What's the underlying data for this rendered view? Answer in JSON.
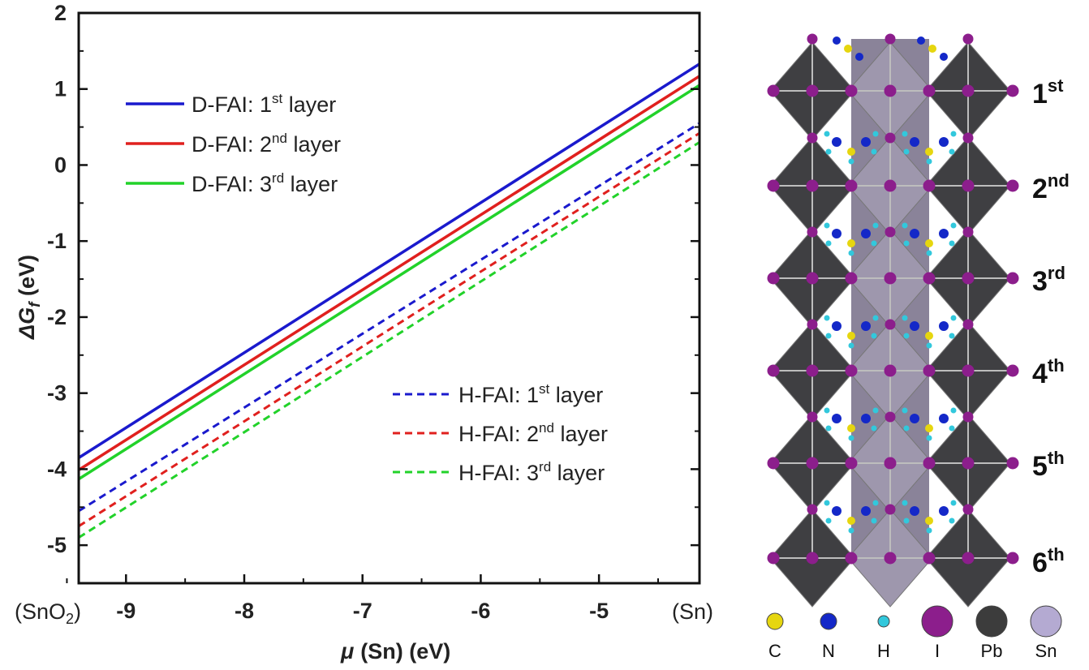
{
  "chart_data": {
    "type": "line",
    "xlabel_symbol": "μ",
    "xlabel_text": "(Sn) (eV)",
    "ylabel_prefix": "ΔG",
    "ylabel_sub": "f",
    "ylabel_suffix": " (eV)",
    "xlim": [
      -9.4,
      -4.15
    ],
    "ylim": [
      -5.5,
      2
    ],
    "x_ticks": [
      -9,
      -8,
      -7,
      -6,
      -5
    ],
    "y_ticks": [
      2,
      1,
      0,
      -1,
      -2,
      -3,
      -4,
      -5
    ],
    "x_end_labels": {
      "left_main": "(SnO",
      "left_sub": "2",
      "left_close": ")",
      "right": "(Sn)"
    },
    "legend_solid": [
      {
        "prefix": "D-FAI: 1",
        "sup": "st",
        "suffix": " layer"
      },
      {
        "prefix": "D-FAI: 2",
        "sup": "nd",
        "suffix": " layer"
      },
      {
        "prefix": "D-FAI: 3",
        "sup": "rd",
        "suffix": " layer"
      }
    ],
    "legend_dashed": [
      {
        "prefix": "H-FAI: 1",
        "sup": "st",
        "suffix": " layer"
      },
      {
        "prefix": "H-FAI: 2",
        "sup": "nd",
        "suffix": " layer"
      },
      {
        "prefix": "H-FAI: 3",
        "sup": "rd",
        "suffix": " layer"
      }
    ],
    "series": [
      {
        "name": "D-FAI: 1st layer",
        "color": "#1a1acd",
        "dash": false,
        "x": [
          -9.4,
          -4.15
        ],
        "y": [
          -3.85,
          1.33
        ]
      },
      {
        "name": "D-FAI: 2nd layer",
        "color": "#e0201e",
        "dash": false,
        "x": [
          -9.4,
          -4.15
        ],
        "y": [
          -4.01,
          1.17
        ]
      },
      {
        "name": "D-FAI: 3rd layer",
        "color": "#22d22a",
        "dash": false,
        "x": [
          -9.4,
          -4.15
        ],
        "y": [
          -4.13,
          1.05
        ]
      },
      {
        "name": "H-FAI: 1st layer",
        "color": "#1a1acd",
        "dash": true,
        "x": [
          -9.4,
          -4.15
        ],
        "y": [
          -4.55,
          0.55
        ]
      },
      {
        "name": "H-FAI: 2nd layer",
        "color": "#e0201e",
        "dash": true,
        "x": [
          -9.4,
          -4.15
        ],
        "y": [
          -4.75,
          0.42
        ]
      },
      {
        "name": "H-FAI: 3rd layer",
        "color": "#22d22a",
        "dash": true,
        "x": [
          -9.4,
          -4.15
        ],
        "y": [
          -4.9,
          0.3
        ]
      }
    ]
  },
  "structure": {
    "layers": [
      {
        "num": "1",
        "sup": "st"
      },
      {
        "num": "2",
        "sup": "nd"
      },
      {
        "num": "3",
        "sup": "rd"
      },
      {
        "num": "4",
        "sup": "th"
      },
      {
        "num": "5",
        "sup": "th"
      },
      {
        "num": "6",
        "sup": "th"
      }
    ],
    "atom_legend": [
      {
        "label": "C",
        "color": "#e6d60f"
      },
      {
        "label": "N",
        "color": "#1428c8"
      },
      {
        "label": "H",
        "color": "#32c8dc"
      },
      {
        "label": "I",
        "color": "#8c1e8c"
      },
      {
        "label": "Pb",
        "color": "#3c3c3c"
      },
      {
        "label": "Sn",
        "color": "#b4aad2"
      }
    ]
  }
}
